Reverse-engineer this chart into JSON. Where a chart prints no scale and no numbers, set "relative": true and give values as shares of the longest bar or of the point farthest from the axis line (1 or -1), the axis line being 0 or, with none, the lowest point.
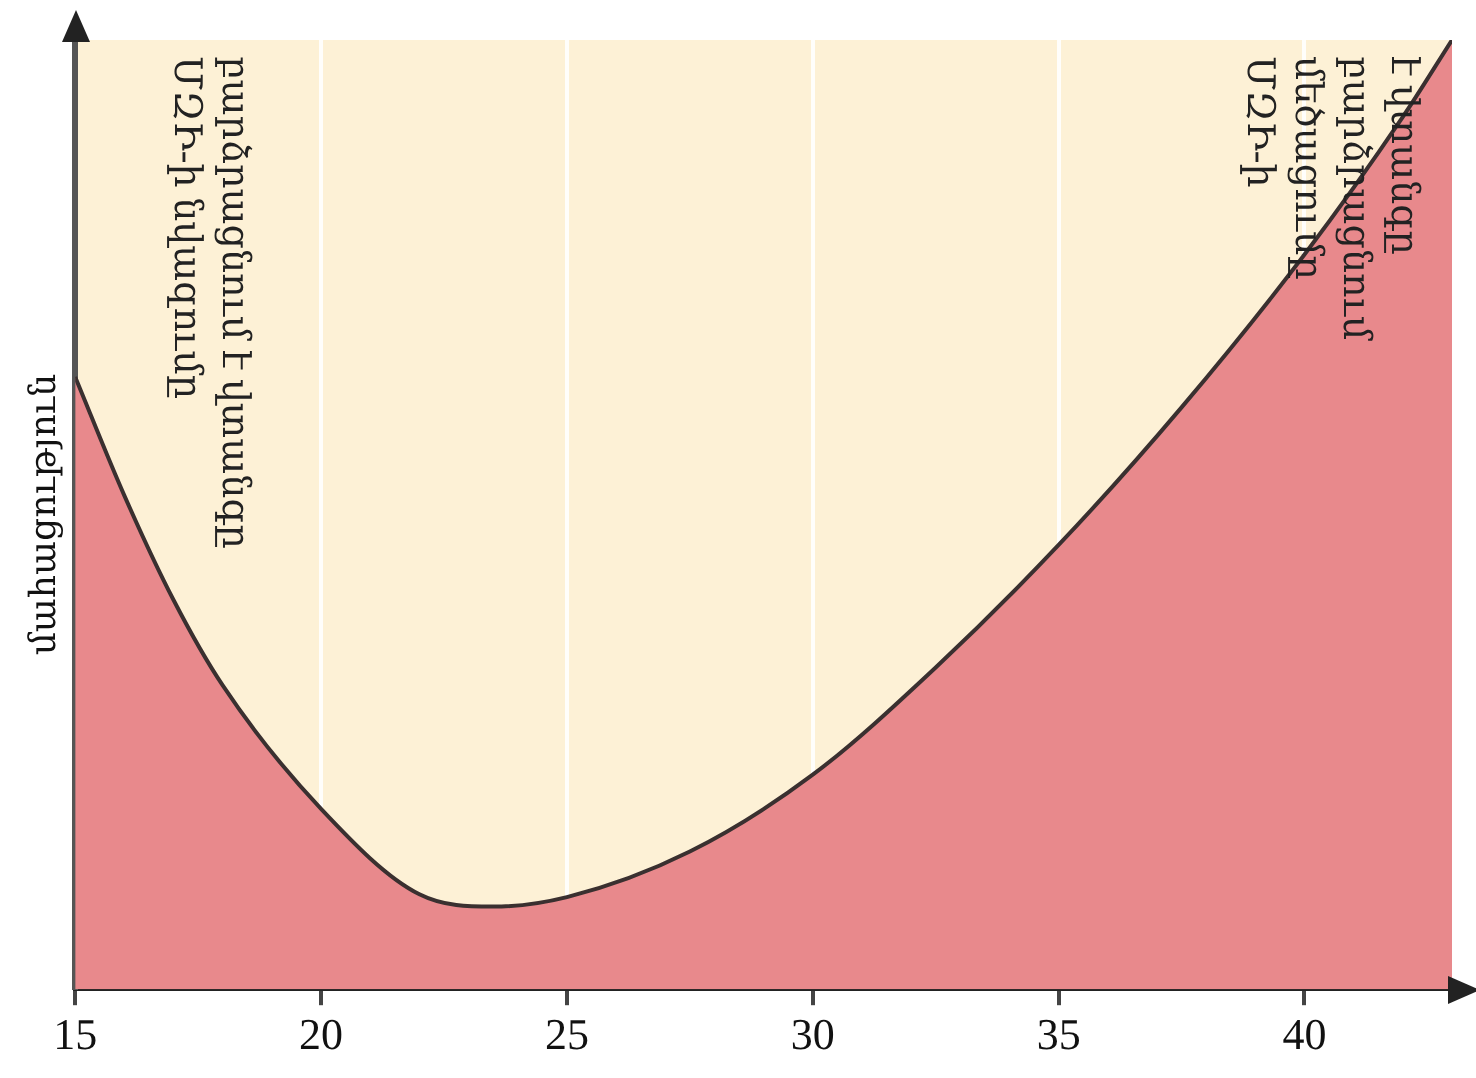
{
  "chart_data": {
    "type": "area",
    "ylabel": "մահացություն",
    "relative": true,
    "grid": "x",
    "x": [
      15,
      16,
      17,
      18,
      20,
      22,
      23.5,
      25,
      27.5,
      30,
      32.5,
      35,
      37.5,
      40,
      42,
      43
    ],
    "series": [
      {
        "color": "#e8898c",
        "values": [
          0.645,
          0.52,
          0.41,
          0.32,
          0.19,
          0.1,
          0.087,
          0.097,
          0.145,
          0.226,
          0.339,
          0.468,
          0.613,
          0.774,
          0.919,
          1
        ]
      }
    ],
    "xlim": [
      15,
      43
    ],
    "xticks": [
      15,
      20,
      25,
      30,
      35,
      40
    ],
    "annotations": [
      "ՄԶԻ-ի նվազումը\nբարձրացնում է վտանգը",
      "ՄԶԻ-ի\nմեծացումը\nբարձրացնում\nէ վտանգը"
    ]
  }
}
